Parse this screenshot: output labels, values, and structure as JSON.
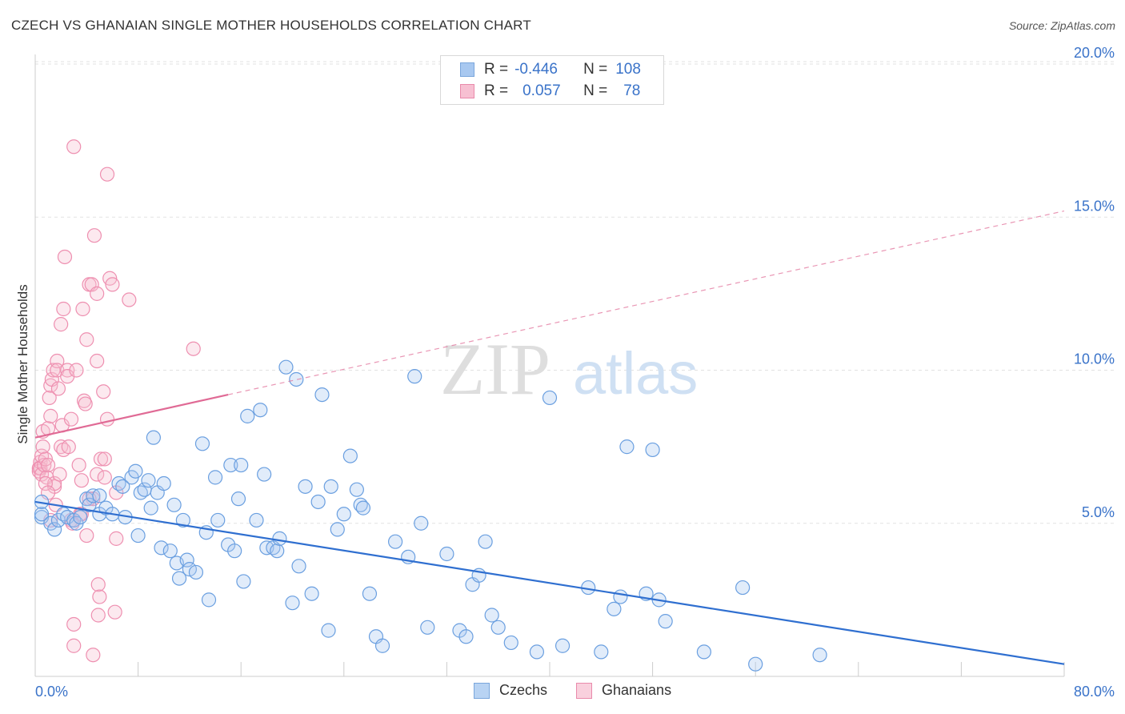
{
  "header": {
    "title": "CZECH VS GHANAIAN SINGLE MOTHER HOUSEHOLDS CORRELATION CHART",
    "source": "Source: ZipAtlas.com"
  },
  "legend_top": {
    "rows": [
      {
        "r_label": "R =",
        "r_value": "-0.446",
        "n_label": "N =",
        "n_value": "108",
        "color": "#a8c8f0",
        "border": "#7aa6dc"
      },
      {
        "r_label": "R =",
        "r_value": "0.057",
        "n_label": "N =",
        "n_value": "78",
        "color": "#f7c0d2",
        "border": "#e98aab"
      }
    ]
  },
  "legend_bottom": {
    "items": [
      {
        "label": "Czechs",
        "color": "#b8d3f3",
        "border": "#7aa6dc"
      },
      {
        "label": "Ghanaians",
        "color": "#f9d0dd",
        "border": "#e98aab"
      }
    ]
  },
  "watermark": {
    "zip": "ZIP",
    "atlas": "atlas"
  },
  "chart_data": {
    "type": "scatter",
    "title": "CZECH VS GHANAIAN SINGLE MOTHER HOUSEHOLDS CORRELATION CHART",
    "xlabel": "",
    "ylabel": "Single Mother Households",
    "xlim": [
      0,
      80
    ],
    "ylim": [
      0,
      20
    ],
    "x_tick_labels": [
      "0.0%",
      "80.0%"
    ],
    "y_ticks": [
      5,
      10,
      15,
      20
    ],
    "y_tick_labels": [
      "5.0%",
      "10.0%",
      "15.0%",
      "20.0%"
    ],
    "grid": true,
    "series": [
      {
        "name": "Czechs",
        "color": "#6a9fe0",
        "trend": {
          "x0": 0,
          "y0": 5.7,
          "x1": 80,
          "y1": 0.4,
          "style": "solid",
          "color": "#2f6fd0"
        },
        "points": [
          [
            0.5,
            5.2
          ],
          [
            0.5,
            5.3
          ],
          [
            1.2,
            5.0
          ],
          [
            1.5,
            4.8
          ],
          [
            1.8,
            5.1
          ],
          [
            2.2,
            5.3
          ],
          [
            2.5,
            5.2
          ],
          [
            3.0,
            5.1
          ],
          [
            3.2,
            5.0
          ],
          [
            3.5,
            5.2
          ],
          [
            4.0,
            5.8
          ],
          [
            4.2,
            5.6
          ],
          [
            4.5,
            5.9
          ],
          [
            5.0,
            5.3
          ],
          [
            5.0,
            5.9
          ],
          [
            5.5,
            5.5
          ],
          [
            6.0,
            5.3
          ],
          [
            6.5,
            6.3
          ],
          [
            6.8,
            6.2
          ],
          [
            7.0,
            5.2
          ],
          [
            7.5,
            6.5
          ],
          [
            7.8,
            6.7
          ],
          [
            8.0,
            4.6
          ],
          [
            8.2,
            6.0
          ],
          [
            8.5,
            6.1
          ],
          [
            8.8,
            6.4
          ],
          [
            9.0,
            5.5
          ],
          [
            9.2,
            7.8
          ],
          [
            9.5,
            6.0
          ],
          [
            9.8,
            4.2
          ],
          [
            10.0,
            6.3
          ],
          [
            10.5,
            4.1
          ],
          [
            10.8,
            5.6
          ],
          [
            11.0,
            3.7
          ],
          [
            11.2,
            3.2
          ],
          [
            11.5,
            5.1
          ],
          [
            11.8,
            3.8
          ],
          [
            12.0,
            3.5
          ],
          [
            12.5,
            3.4
          ],
          [
            13.0,
            7.6
          ],
          [
            13.3,
            4.7
          ],
          [
            13.5,
            2.5
          ],
          [
            14.0,
            6.5
          ],
          [
            14.2,
            5.1
          ],
          [
            15.0,
            4.3
          ],
          [
            15.2,
            6.9
          ],
          [
            15.5,
            4.1
          ],
          [
            15.8,
            5.8
          ],
          [
            16.0,
            6.9
          ],
          [
            16.2,
            3.1
          ],
          [
            16.5,
            8.5
          ],
          [
            17.2,
            5.1
          ],
          [
            17.5,
            8.7
          ],
          [
            17.8,
            6.6
          ],
          [
            18.0,
            4.2
          ],
          [
            18.5,
            4.2
          ],
          [
            18.8,
            4.1
          ],
          [
            19.0,
            4.5
          ],
          [
            19.5,
            10.1
          ],
          [
            20.0,
            2.4
          ],
          [
            20.3,
            9.7
          ],
          [
            20.5,
            3.6
          ],
          [
            21.0,
            6.2
          ],
          [
            21.5,
            2.7
          ],
          [
            22.0,
            5.7
          ],
          [
            22.3,
            9.2
          ],
          [
            22.8,
            1.5
          ],
          [
            23.0,
            6.2
          ],
          [
            23.5,
            4.8
          ],
          [
            24.0,
            5.3
          ],
          [
            24.5,
            7.2
          ],
          [
            25.0,
            6.1
          ],
          [
            25.3,
            5.6
          ],
          [
            25.5,
            5.5
          ],
          [
            26.0,
            2.7
          ],
          [
            26.5,
            1.3
          ],
          [
            27.0,
            1.0
          ],
          [
            28.0,
            4.4
          ],
          [
            29.0,
            3.9
          ],
          [
            29.5,
            9.8
          ],
          [
            30.0,
            5.0
          ],
          [
            30.5,
            1.6
          ],
          [
            32.0,
            4.0
          ],
          [
            33.0,
            1.5
          ],
          [
            33.5,
            1.3
          ],
          [
            34.0,
            3.0
          ],
          [
            34.5,
            3.3
          ],
          [
            35.0,
            4.4
          ],
          [
            35.5,
            2.0
          ],
          [
            36.0,
            1.6
          ],
          [
            37.0,
            1.1
          ],
          [
            39.0,
            0.8
          ],
          [
            40.0,
            9.1
          ],
          [
            41.0,
            1.0
          ],
          [
            43.0,
            2.9
          ],
          [
            44.0,
            0.8
          ],
          [
            45.0,
            2.2
          ],
          [
            45.5,
            2.6
          ],
          [
            46.0,
            7.5
          ],
          [
            47.5,
            2.7
          ],
          [
            48.0,
            7.4
          ],
          [
            48.5,
            2.5
          ],
          [
            49.0,
            1.8
          ],
          [
            52.0,
            0.8
          ],
          [
            55.0,
            2.9
          ],
          [
            56.0,
            0.4
          ],
          [
            61.0,
            0.7
          ],
          [
            0.5,
            5.7
          ]
        ]
      },
      {
        "name": "Ghanaians",
        "color": "#ee8fb0",
        "trend": {
          "x0": 0,
          "y0": 7.8,
          "x1": 15,
          "y1": 9.2,
          "style": "solid",
          "color": "#e06a95",
          "ext_x1": 80,
          "ext_y1": 15.2,
          "ext_style": "dashed"
        },
        "points": [
          [
            0.3,
            6.8
          ],
          [
            0.3,
            6.7
          ],
          [
            0.4,
            7.0
          ],
          [
            0.4,
            6.8
          ],
          [
            0.5,
            7.2
          ],
          [
            0.5,
            6.6
          ],
          [
            0.6,
            7.5
          ],
          [
            0.6,
            8.0
          ],
          [
            0.7,
            6.9
          ],
          [
            0.8,
            7.1
          ],
          [
            0.9,
            6.5
          ],
          [
            1.0,
            8.1
          ],
          [
            1.0,
            6.9
          ],
          [
            1.1,
            9.1
          ],
          [
            1.2,
            8.5
          ],
          [
            1.2,
            9.5
          ],
          [
            1.3,
            9.7
          ],
          [
            1.4,
            10.0
          ],
          [
            1.5,
            6.2
          ],
          [
            1.5,
            6.3
          ],
          [
            1.6,
            5.6
          ],
          [
            1.7,
            10.3
          ],
          [
            1.7,
            10.0
          ],
          [
            1.8,
            9.4
          ],
          [
            1.9,
            6.6
          ],
          [
            2.0,
            11.5
          ],
          [
            2.0,
            7.5
          ],
          [
            2.1,
            8.2
          ],
          [
            2.2,
            7.4
          ],
          [
            2.2,
            12.0
          ],
          [
            2.3,
            13.7
          ],
          [
            2.5,
            10.0
          ],
          [
            2.5,
            9.8
          ],
          [
            2.6,
            7.5
          ],
          [
            2.8,
            5.1
          ],
          [
            2.8,
            8.4
          ],
          [
            3.0,
            17.3
          ],
          [
            3.0,
            1.0
          ],
          [
            3.0,
            1.7
          ],
          [
            3.2,
            10.0
          ],
          [
            3.4,
            6.9
          ],
          [
            3.5,
            5.3
          ],
          [
            3.6,
            6.4
          ],
          [
            3.7,
            12.0
          ],
          [
            3.8,
            9.0
          ],
          [
            3.9,
            8.9
          ],
          [
            4.0,
            11.0
          ],
          [
            4.0,
            4.6
          ],
          [
            4.2,
            12.8
          ],
          [
            4.4,
            12.8
          ],
          [
            4.5,
            5.8
          ],
          [
            4.5,
            0.7
          ],
          [
            4.6,
            14.4
          ],
          [
            4.8,
            6.6
          ],
          [
            4.8,
            12.5
          ],
          [
            4.8,
            10.3
          ],
          [
            4.9,
            3.0
          ],
          [
            4.9,
            2.0
          ],
          [
            5.0,
            2.6
          ],
          [
            5.1,
            7.1
          ],
          [
            5.3,
            9.3
          ],
          [
            5.4,
            7.1
          ],
          [
            5.4,
            6.5
          ],
          [
            5.6,
            16.4
          ],
          [
            5.6,
            8.4
          ],
          [
            5.8,
            13.0
          ],
          [
            6.0,
            12.8
          ],
          [
            6.2,
            2.1
          ],
          [
            6.3,
            4.5
          ],
          [
            6.3,
            6.0
          ],
          [
            7.3,
            12.3
          ],
          [
            12.3,
            10.7
          ],
          [
            1.2,
            5.1
          ],
          [
            0.8,
            6.3
          ],
          [
            1.0,
            6.0
          ],
          [
            3.6,
            5.3
          ],
          [
            4.2,
            5.8
          ],
          [
            2.9,
            5.0
          ]
        ]
      }
    ]
  }
}
